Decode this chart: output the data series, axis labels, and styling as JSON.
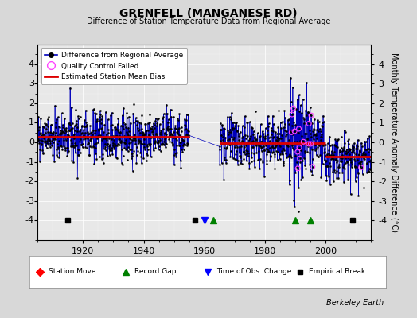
{
  "title": "GRENFELL (MANGANESE RD)",
  "subtitle": "Difference of Station Temperature Data from Regional Average",
  "ylabel": "Monthly Temperature Anomaly Difference (°C)",
  "credit": "Berkeley Earth",
  "xlim": [
    1905,
    2015
  ],
  "ylim": [
    -5,
    5
  ],
  "yticks": [
    -4,
    -3,
    -2,
    -1,
    0,
    1,
    2,
    3,
    4
  ],
  "xticks": [
    1920,
    1940,
    1960,
    1980,
    2000
  ],
  "bg_color": "#d8d8d8",
  "plot_bg_color": "#e8e8e8",
  "line_color": "#0000bb",
  "marker_color": "#000000",
  "qc_color": "#ff44ff",
  "bias_color": "#dd0000",
  "seed": 42,
  "station_moves": [],
  "record_gaps": [
    1963,
    1990,
    1995
  ],
  "obs_changes": [
    1960
  ],
  "empirical_breaks": [
    1915,
    1957,
    2009
  ],
  "segments": [
    {
      "start": 1905,
      "end": 1955,
      "mean": 0.28
    },
    {
      "start": 1965,
      "end": 1988,
      "mean": -0.05
    },
    {
      "start": 1988,
      "end": 2000,
      "mean": -0.05
    },
    {
      "start": 2000,
      "end": 2015,
      "mean": -0.75
    }
  ],
  "gap_start": 1955,
  "gap_end": 1965,
  "spike_region_start": 1988,
  "spike_region_end": 1996,
  "n_qc_spike": 30
}
